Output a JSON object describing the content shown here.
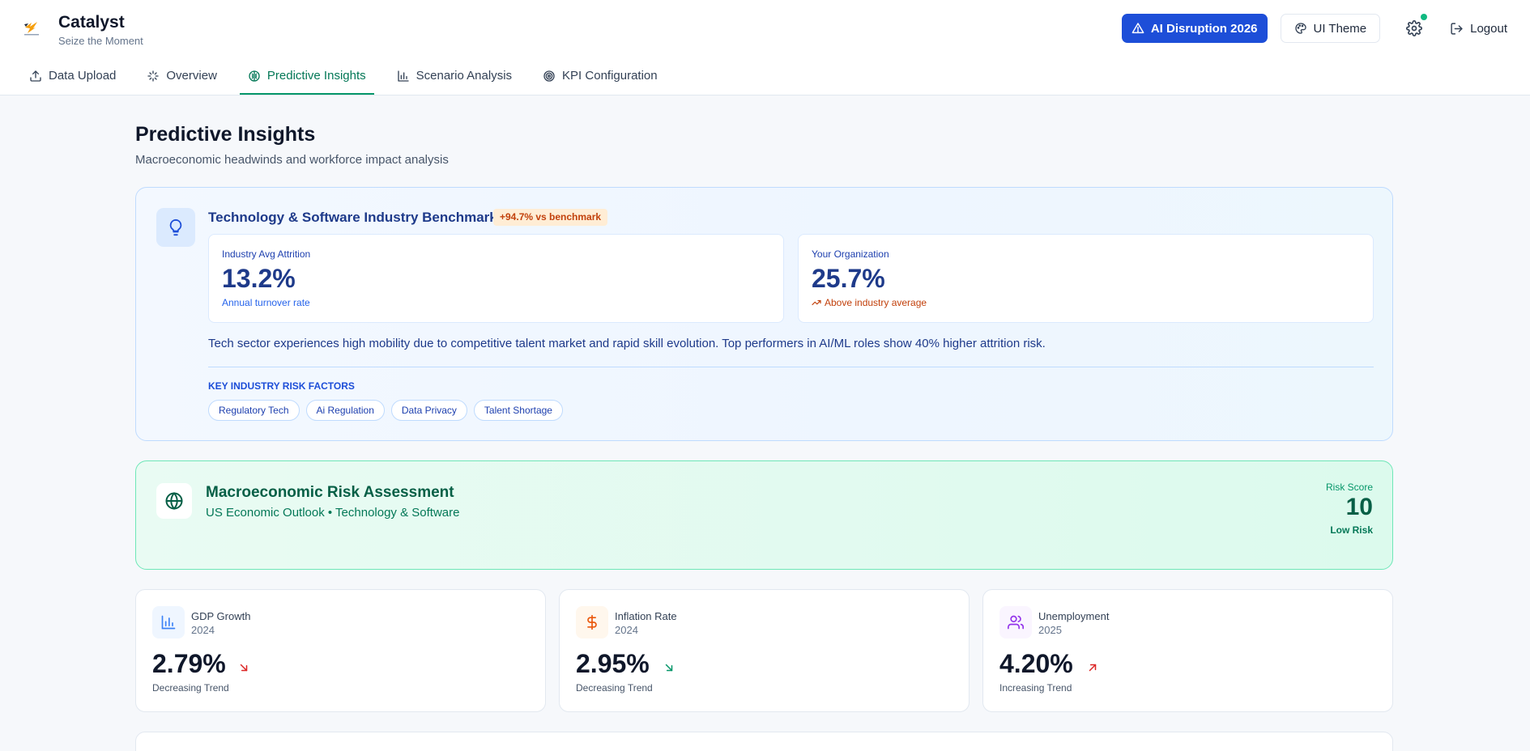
{
  "app": {
    "name": "Catalyst",
    "tagline": "Seize the Moment"
  },
  "header": {
    "ai_button": "AI Disruption 2026",
    "theme_button": "UI Theme",
    "logout": "Logout"
  },
  "tabs": [
    {
      "label": "Data Upload",
      "icon": "upload-icon"
    },
    {
      "label": "Overview",
      "icon": "sparkles-icon"
    },
    {
      "label": "Predictive Insights",
      "icon": "brain-icon",
      "active": true
    },
    {
      "label": "Scenario Analysis",
      "icon": "bar-chart-icon"
    },
    {
      "label": "KPI Configuration",
      "icon": "target-icon"
    }
  ],
  "page": {
    "title": "Predictive Insights",
    "subtitle": "Macroeconomic headwinds and workforce impact analysis"
  },
  "benchmark": {
    "title": "Technology & Software Industry Benchmark",
    "badge": "+94.7% vs benchmark",
    "industry": {
      "label": "Industry Avg Attrition",
      "value": "13.2%",
      "note": "Annual turnover rate"
    },
    "org": {
      "label": "Your Organization",
      "value": "25.7%",
      "note": "Above industry average"
    },
    "description": "Tech sector experiences high mobility due to competitive talent market and rapid skill evolution. Top performers in AI/ML roles show 40% higher attrition risk.",
    "risk_factors_title": "KEY INDUSTRY RISK FACTORS",
    "risk_factors": [
      "Regulatory Tech",
      "Ai Regulation",
      "Data Privacy",
      "Talent Shortage"
    ]
  },
  "macro": {
    "title": "Macroeconomic Risk Assessment",
    "subtitle": "US Economic Outlook • Technology & Software",
    "risk_score_label": "Risk Score",
    "risk_score": "10",
    "risk_level": "Low Risk"
  },
  "stats": [
    {
      "name": "GDP Growth",
      "year": "2024",
      "value": "2.79%",
      "trend": "Decreasing Trend",
      "direction": "down",
      "arrow_color": "#dc2626",
      "icon": "bar-chart-icon",
      "icon_color": "#3b82f6",
      "icon_bg": "#eff6ff"
    },
    {
      "name": "Inflation Rate",
      "year": "2024",
      "value": "2.95%",
      "trend": "Decreasing Trend",
      "direction": "down",
      "arrow_color": "#059669",
      "icon": "dollar-icon",
      "icon_color": "#ea580c",
      "icon_bg": "#fff7ed"
    },
    {
      "name": "Unemployment",
      "year": "2025",
      "value": "4.20%",
      "trend": "Increasing Trend",
      "direction": "up",
      "arrow_color": "#dc2626",
      "icon": "users-icon",
      "icon_color": "#9333ea",
      "icon_bg": "#faf5ff"
    }
  ],
  "colors": {
    "accent_green": "#059669",
    "primary_blue": "#1d4ed8",
    "status_dot": "#10b981"
  }
}
